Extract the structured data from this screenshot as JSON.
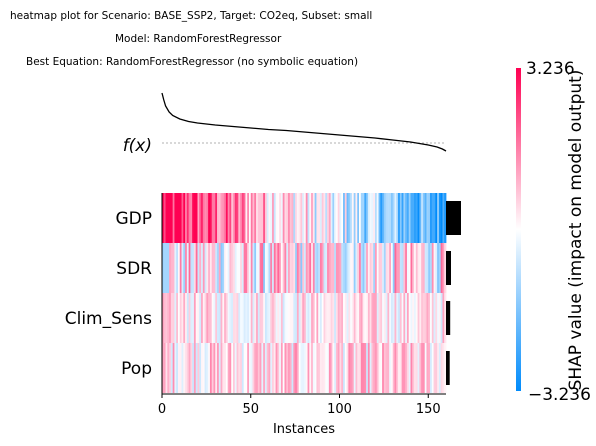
{
  "chart_data": {
    "type": "heatmap",
    "title_lines": [
      "heatmap plot for Scenario: BASE_SSP2, Target: CO2eq, Subset: small",
      "Model: RandomForestRegressor",
      "Best Equation: RandomForestRegressor (no symbolic equation)"
    ],
    "fx_label": "f(x)",
    "xlabel": "Instances",
    "x_ticks": [
      0,
      50,
      100,
      150
    ],
    "xlim": [
      0,
      160
    ],
    "n_instances": 160,
    "features": [
      "GDP",
      "SDR",
      "Clim_Sens",
      "Pop"
    ],
    "feature_importance": [
      0.9,
      0.3,
      0.25,
      0.22
    ],
    "colorbar": {
      "label": "SHAP value (impact on model output)",
      "max_label": "3.236",
      "min_label": "−3.236",
      "vmin": -3.236,
      "vmax": 3.236,
      "colors": {
        "negative": "#008bfb",
        "neutral": "#ffffff",
        "positive": "#ff0052"
      }
    },
    "fx_curve": {
      "x": [
        0,
        1,
        2,
        4,
        6,
        10,
        15,
        20,
        30,
        40,
        50,
        60,
        70,
        80,
        90,
        100,
        110,
        120,
        130,
        140,
        150,
        155,
        158,
        160
      ],
      "y": [
        1.0,
        0.86,
        0.74,
        0.62,
        0.55,
        0.48,
        0.43,
        0.4,
        0.36,
        0.33,
        0.3,
        0.27,
        0.25,
        0.22,
        0.19,
        0.16,
        0.13,
        0.1,
        0.06,
        0.02,
        -0.04,
        -0.08,
        -0.12,
        -0.16
      ]
    }
  }
}
